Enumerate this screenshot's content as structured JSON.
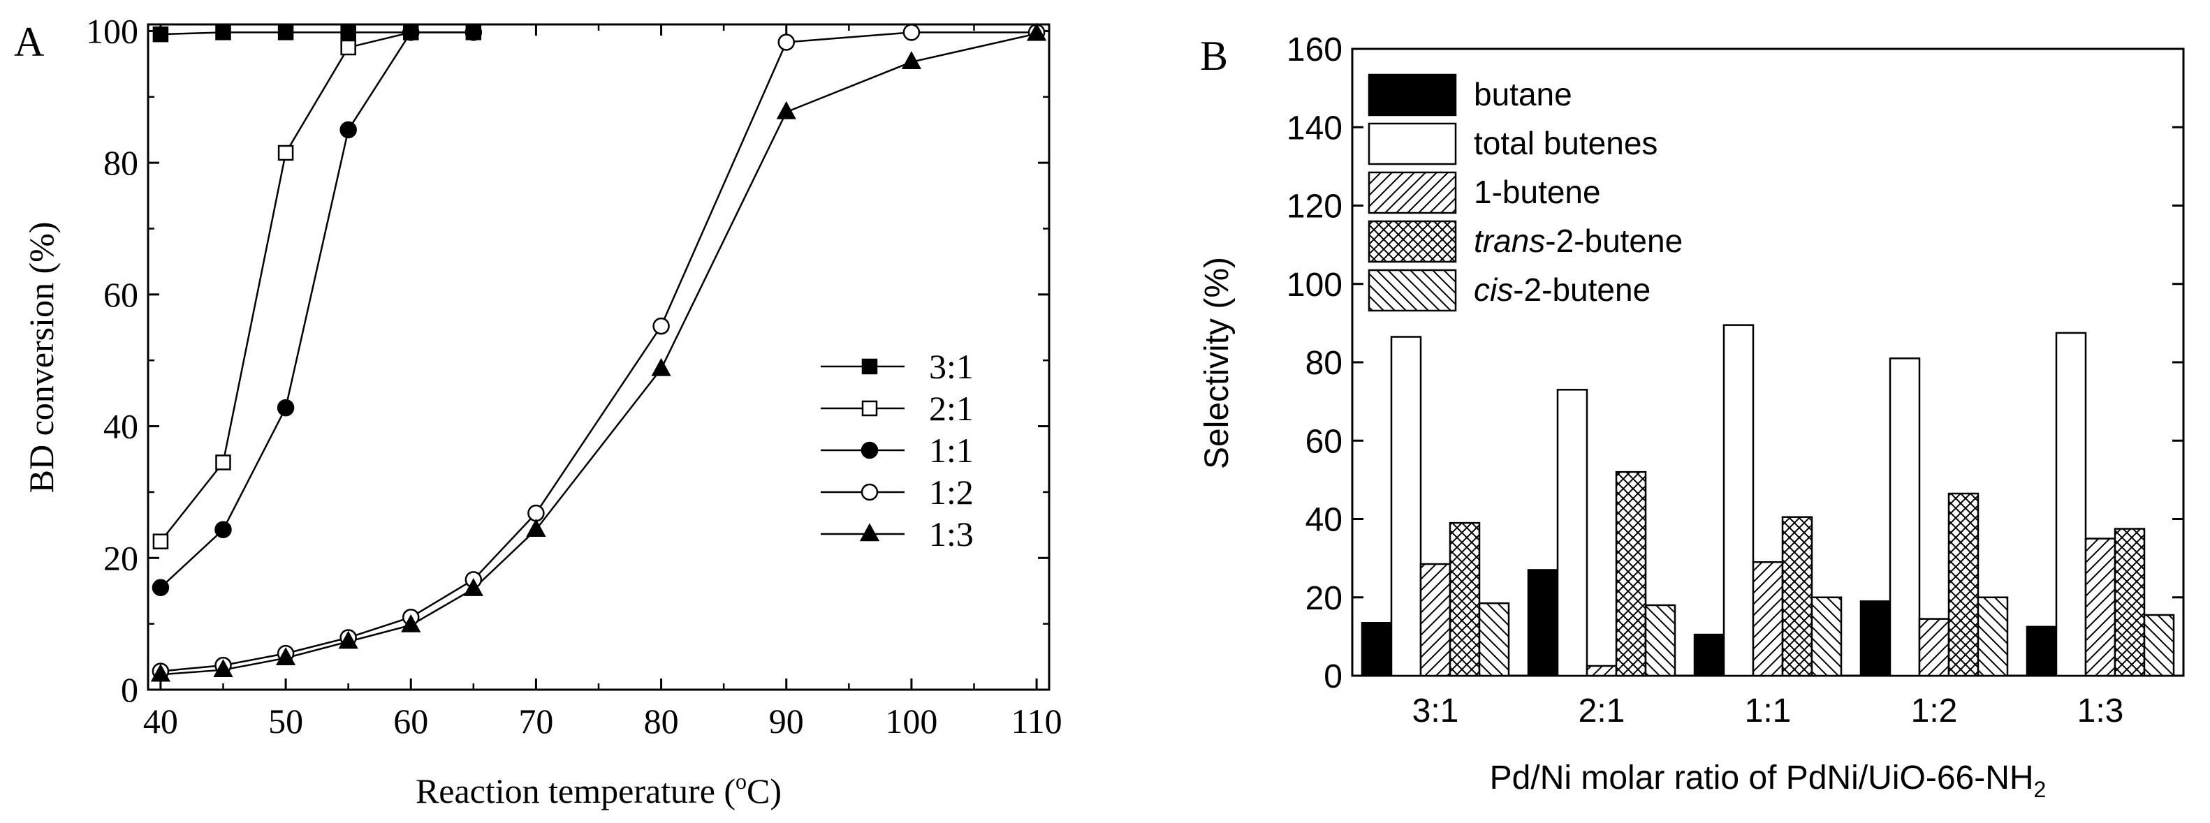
{
  "chart_data": [
    {
      "panel_label": "A",
      "type": "line",
      "xlabel_prefix": "Reaction temperature (",
      "xlabel_unit_sup": "o",
      "xlabel_suffix": "C)",
      "ylabel": "BD conversion (%)",
      "xlim": [
        39,
        111
      ],
      "ylim": [
        0,
        101
      ],
      "xticks": [
        40,
        50,
        60,
        70,
        80,
        90,
        100,
        110
      ],
      "yticks": [
        0,
        20,
        40,
        60,
        80,
        100
      ],
      "legend_position": "center-right",
      "series": [
        {
          "name": "3:1",
          "marker": "square-filled",
          "x": [
            40,
            45,
            50,
            55,
            60,
            65
          ],
          "y": [
            99.5,
            99.8,
            99.8,
            99.8,
            99.8,
            99.8
          ]
        },
        {
          "name": "2:1",
          "marker": "square-open",
          "x": [
            40,
            45,
            50,
            55,
            60
          ],
          "y": [
            22.5,
            34.5,
            81.5,
            97.5,
            99.8
          ]
        },
        {
          "name": "1:1",
          "marker": "circle-filled",
          "x": [
            40,
            45,
            50,
            55,
            60,
            65
          ],
          "y": [
            15.5,
            24.3,
            42.8,
            85,
            99.8,
            99.8
          ]
        },
        {
          "name": "1:2",
          "marker": "circle-open",
          "x": [
            40,
            45,
            50,
            55,
            60,
            65,
            70,
            80,
            90,
            100,
            110
          ],
          "y": [
            2.8,
            3.7,
            5.5,
            7.9,
            11,
            16.7,
            26.8,
            55.2,
            98.3,
            99.8,
            99.8
          ]
        },
        {
          "name": "1:3",
          "marker": "triangle-filled",
          "x": [
            40,
            45,
            50,
            55,
            60,
            65,
            70,
            80,
            90,
            100,
            110
          ],
          "y": [
            2.3,
            3.0,
            4.8,
            7.3,
            9.8,
            15.3,
            24.3,
            48.7,
            87.7,
            95.3,
            99.6
          ]
        }
      ]
    },
    {
      "panel_label": "B",
      "type": "bar",
      "xlabel_main": "Pd/Ni molar ratio of PdNi/UiO-66-NH",
      "xlabel_sub": "2",
      "ylabel": "Selectivity (%)",
      "ylim": [
        0,
        160
      ],
      "yticks": [
        0,
        20,
        40,
        60,
        80,
        100,
        120,
        140,
        160
      ],
      "categories": [
        "3:1",
        "2:1",
        "1:1",
        "1:2",
        "1:3"
      ],
      "legend_position": "top-left",
      "series": [
        {
          "name": "butane",
          "pattern": "solid-black",
          "values": [
            13.5,
            27,
            10.5,
            19,
            12.5
          ]
        },
        {
          "name": "total butenes",
          "pattern": "white",
          "values": [
            86.5,
            73,
            89.5,
            81,
            87.5
          ]
        },
        {
          "name": "1-butene",
          "pattern": "diagonal-hatch",
          "values": [
            28.5,
            2.5,
            29,
            14.5,
            35
          ]
        },
        {
          "name": "trans-2-butene",
          "name_italic": "trans",
          "name_rest": "-2-butene",
          "pattern": "cross-hatch",
          "values": [
            39,
            52,
            40.5,
            46.5,
            37.5
          ]
        },
        {
          "name": "cis-2-butene",
          "name_italic": "cis",
          "name_rest": "-2-butene",
          "pattern": "back-diagonal-hatch",
          "values": [
            18.5,
            18,
            20,
            20,
            15.5
          ]
        }
      ]
    }
  ]
}
